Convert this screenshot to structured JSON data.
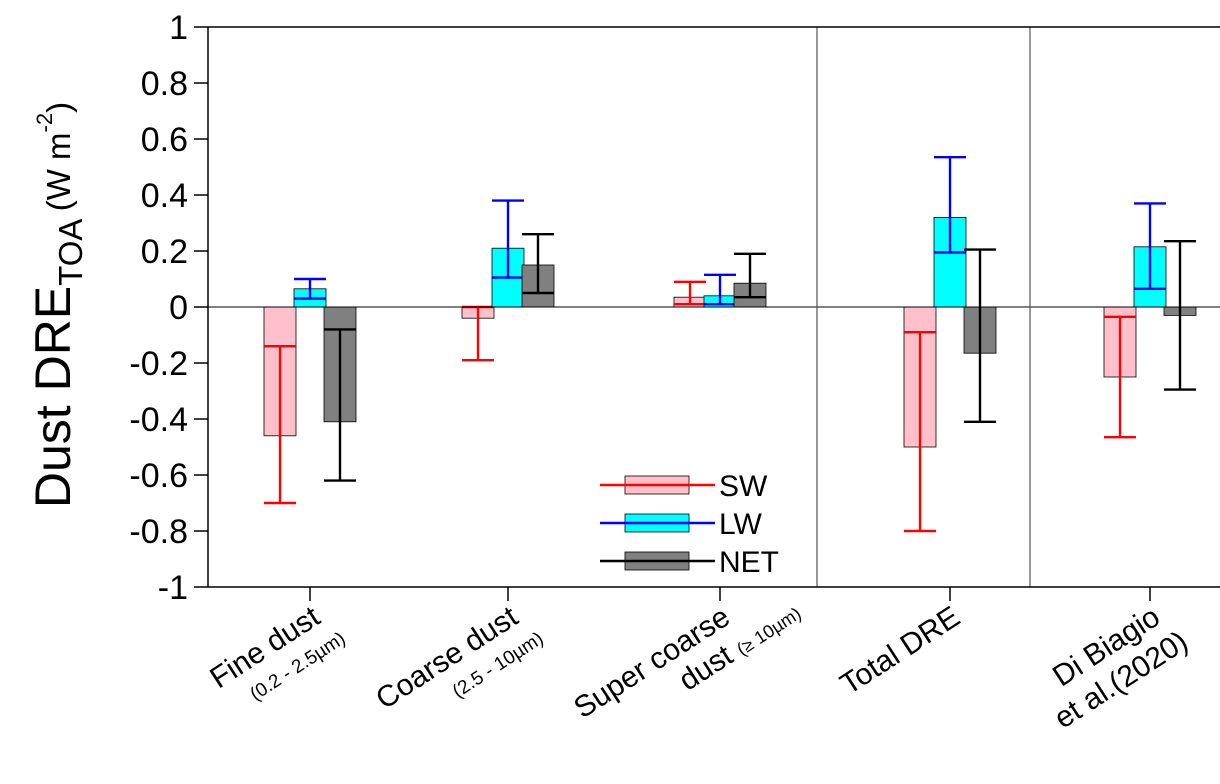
{
  "chart_data": {
    "type": "bar",
    "ylabel": {
      "main": "Dust DRE",
      "subscript": "TOA",
      "unit_open": " (W m",
      "unit_sup": "-2",
      "unit_close": ")"
    },
    "ylim": [
      -1,
      1
    ],
    "yticks": [
      {
        "value": 1,
        "label": "1"
      },
      {
        "value": 0.8,
        "label": "0.8"
      },
      {
        "value": 0.6,
        "label": "0.6"
      },
      {
        "value": 0.4,
        "label": "0.4"
      },
      {
        "value": 0.2,
        "label": "0.2"
      },
      {
        "value": 0,
        "label": "0"
      },
      {
        "value": -0.2,
        "label": "-0.2"
      },
      {
        "value": -0.4,
        "label": "-0.4"
      },
      {
        "value": -0.6,
        "label": "-0.6"
      },
      {
        "value": -0.8,
        "label": "-0.8"
      },
      {
        "value": -1,
        "label": "-1"
      }
    ],
    "categories": [
      {
        "main": "Fine dust",
        "sub": "(0.2 - 2.5µm)"
      },
      {
        "main": "Coarse dust",
        "sub": "(2.5 - 10µm)"
      },
      {
        "main": "Super coarse",
        "sub": "dust",
        "sub2": "(≥ 10µm)"
      },
      {
        "main": "Total DRE",
        "sub": ""
      },
      {
        "main": "Di Biagio",
        "sub": "et al.(2020)",
        "sub_large": true
      }
    ],
    "section_dividers_after": [
      2,
      3
    ],
    "series": [
      {
        "name": "SW",
        "fill": "#ffc0cb",
        "error_color": "#ff0000",
        "values": [
          -0.46,
          -0.04,
          0.035,
          -0.5,
          -0.25
        ],
        "err_low": [
          -0.7,
          -0.19,
          0.01,
          -0.8,
          -0.465
        ],
        "err_high": [
          -0.14,
          0.0,
          0.09,
          -0.09,
          -0.035
        ]
      },
      {
        "name": "LW",
        "fill": "#00ffff",
        "error_color": "#0000ff",
        "values": [
          0.065,
          0.21,
          0.04,
          0.32,
          0.215
        ],
        "err_low": [
          0.03,
          0.105,
          0.01,
          0.195,
          0.065
        ],
        "err_high": [
          0.1,
          0.38,
          0.115,
          0.535,
          0.37
        ]
      },
      {
        "name": "NET",
        "fill": "#808080",
        "error_color": "#000000",
        "values": [
          -0.41,
          0.15,
          0.085,
          -0.165,
          -0.03
        ],
        "err_low": [
          -0.62,
          0.05,
          0.035,
          -0.41,
          -0.295
        ],
        "err_high": [
          -0.08,
          0.26,
          0.19,
          0.205,
          0.235
        ]
      }
    ],
    "legend": {
      "placement": "bottom-center"
    },
    "grid": false
  }
}
